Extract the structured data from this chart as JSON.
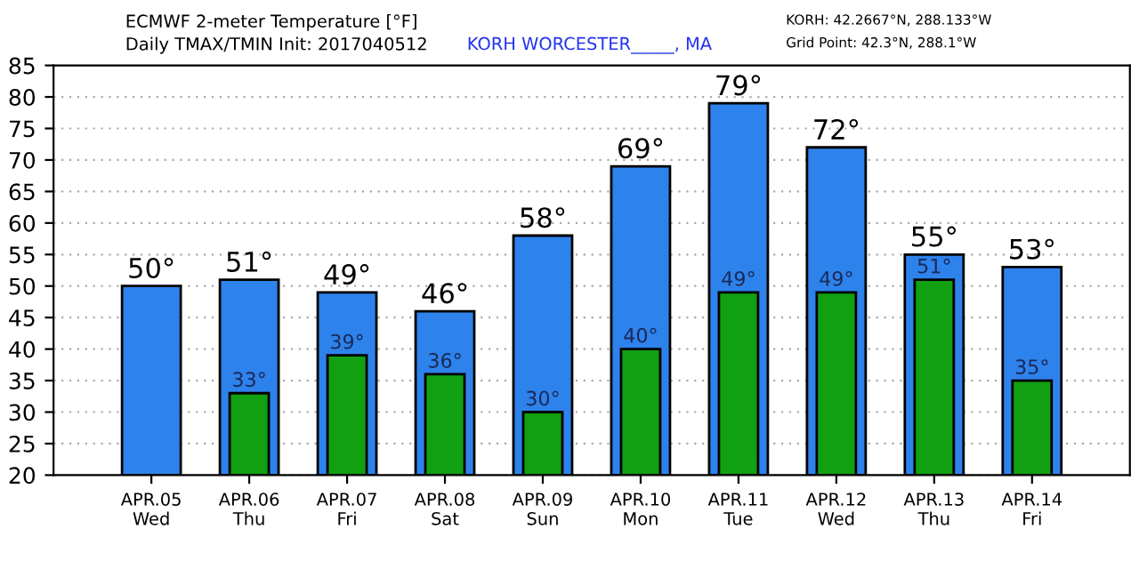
{
  "chart_data": {
    "type": "bar",
    "title": "ECMWF 2-meter Temperature [°F]",
    "subtitle": "Daily TMAX/TMIN Init: 2017040512",
    "annotations": [
      "KORH WORCESTER_____, MA",
      "KORH: 42.2667°N, 288.133°W",
      "Grid Point: 42.3°N, 288.1°W"
    ],
    "categories": [
      "APR.05\nWed",
      "APR.06\nThu",
      "APR.07\nFri",
      "APR.08\nSat",
      "APR.09\nSun",
      "APR.10\nMon",
      "APR.11\nTue",
      "APR.12\nWed",
      "APR.13\nThu",
      "APR.14\nFri"
    ],
    "series": [
      {
        "color": "#2e82eb",
        "values": [
          50,
          51,
          49,
          46,
          58,
          69,
          79,
          72,
          55,
          53
        ],
        "value_labels": [
          "50°",
          "51°",
          "49°",
          "46°",
          "58°",
          "69°",
          "79°",
          "72°",
          "55°",
          "53°"
        ]
      },
      {
        "color": "#11a011",
        "values": [
          null,
          33,
          39,
          36,
          30,
          40,
          49,
          49,
          51,
          35
        ],
        "value_labels": [
          null,
          "33°",
          "39°",
          "36°",
          "30°",
          "40°",
          "49°",
          "49°",
          "51°",
          "35°"
        ]
      }
    ],
    "ylim": [
      20,
      85
    ],
    "yticks": [
      20,
      25,
      30,
      35,
      40,
      45,
      50,
      55,
      60,
      65,
      70,
      75,
      80,
      85
    ],
    "grid": "y",
    "legend": false
  }
}
